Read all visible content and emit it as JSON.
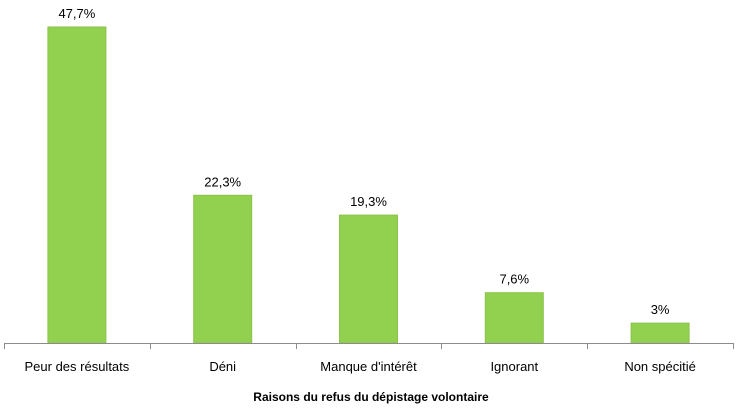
{
  "chart_data": {
    "type": "bar",
    "categories": [
      "Peur des résultats",
      "Déni",
      "Manque d'intérêt",
      "Ignorant",
      "Non spécitié"
    ],
    "values": [
      47.7,
      22.3,
      19.3,
      7.6,
      3
    ],
    "data_labels": [
      "47,7%",
      "22,3%",
      "19,3%",
      "7,6%",
      "3%"
    ],
    "title": "",
    "xlabel": "Raisons du refus du dépistage volontaire",
    "ylabel": "",
    "ylim": [
      0,
      47.7
    ],
    "grid": false,
    "legend": "none",
    "bar_color": "#92d050"
  }
}
